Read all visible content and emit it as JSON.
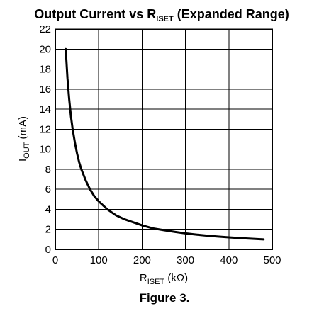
{
  "chart_data": {
    "type": "line",
    "title": {
      "main": "Output Current vs R",
      "sub": "ISET",
      "tail": " (Expanded Range)"
    },
    "xlabel": {
      "main": "R",
      "sub": "ISET",
      "tail": " (kΩ)"
    },
    "ylabel": {
      "main": "I",
      "sub": "OUT",
      "tail": " (mA)"
    },
    "xlim": [
      0,
      500
    ],
    "ylim": [
      0,
      22
    ],
    "x_ticks": [
      0,
      100,
      200,
      300,
      400,
      500
    ],
    "y_ticks": [
      0,
      2,
      4,
      6,
      8,
      10,
      12,
      14,
      16,
      18,
      20,
      22
    ],
    "grid": true,
    "series": [
      {
        "x": [
          24,
          28,
          32,
          36,
          40,
          45,
          50,
          55,
          60,
          70,
          80,
          90,
          100,
          110,
          120,
          140,
          160,
          180,
          200,
          225,
          250,
          275,
          300,
          325,
          350,
          375,
          400,
          425,
          450,
          480
        ],
        "values": [
          20.0,
          17.1,
          15.0,
          13.3,
          12.0,
          10.7,
          9.6,
          8.7,
          8.0,
          6.9,
          6.0,
          5.3,
          4.8,
          4.4,
          4.0,
          3.4,
          3.0,
          2.7,
          2.4,
          2.1,
          1.92,
          1.75,
          1.6,
          1.48,
          1.37,
          1.28,
          1.2,
          1.13,
          1.07,
          1.0
        ]
      }
    ]
  },
  "caption": "Figure 3."
}
